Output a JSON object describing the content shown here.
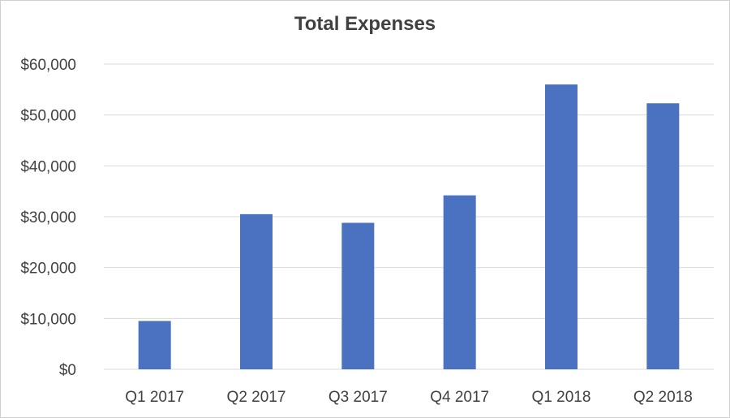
{
  "chart_data": {
    "type": "bar",
    "title": "Total Expenses",
    "categories": [
      "Q1 2017",
      "Q2 2017",
      "Q3 2017",
      "Q4 2017",
      "Q1 2018",
      "Q2 2018"
    ],
    "values": [
      9500,
      30500,
      28800,
      34200,
      56000,
      52300
    ],
    "y_tick_labels": [
      "$0",
      "$10,000",
      "$20,000",
      "$30,000",
      "$40,000",
      "$50,000",
      "$60,000"
    ],
    "ylim": [
      0,
      60000
    ],
    "grid": true,
    "colors": {
      "bar": "#4a72c0",
      "grid": "#d9d9d9",
      "text": "#404040"
    }
  }
}
